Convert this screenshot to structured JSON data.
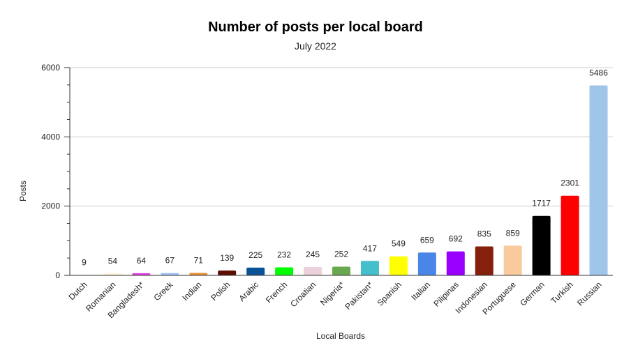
{
  "chart_data": {
    "type": "bar",
    "title": "Number of posts per local board",
    "subtitle": "July 2022",
    "xlabel": "Local Boards",
    "ylabel": "Posts",
    "ylim": [
      0,
      6000
    ],
    "yticks": [
      0,
      2000,
      4000,
      6000
    ],
    "grid": true,
    "legend": "none",
    "categories": [
      "Dutch",
      "Romanian",
      "Bangladesh*",
      "Greek",
      "Indian",
      "Polish",
      "Arabic",
      "French",
      "Croatian",
      "Nigeria*",
      "Pakistan*",
      "Spanish",
      "Italian",
      "Pilipinas",
      "Indonesian",
      "Portuguese",
      "German",
      "Turkish",
      "Russian"
    ],
    "values": [
      9,
      54,
      64,
      67,
      71,
      139,
      225,
      232,
      245,
      252,
      417,
      549,
      659,
      692,
      835,
      859,
      1717,
      2301,
      5486
    ],
    "colors": [
      "#f4cccc",
      "#fff2cc",
      "#e040e0",
      "#a4c2f4",
      "#e69138",
      "#5b0f00",
      "#0b5394",
      "#00ff00",
      "#ead1dc",
      "#6aa84f",
      "#45bfcc",
      "#ffff00",
      "#4a86e8",
      "#9900ff",
      "#85200c",
      "#f9cb9c",
      "#000000",
      "#ff0000",
      "#9fc5e8"
    ]
  }
}
